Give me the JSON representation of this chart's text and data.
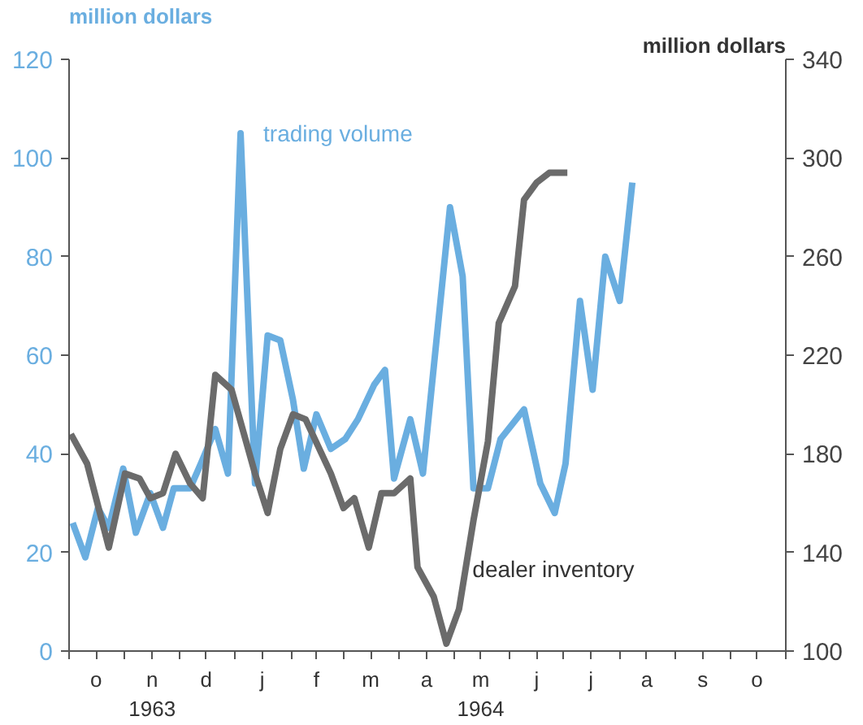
{
  "chart_data": {
    "type": "line",
    "ylabel": "million dollars",
    "y2label": "million dollars",
    "xlim": [
      "1963-10-01",
      "1964-11-01"
    ],
    "xticks": [
      {
        "value": "1963-10-01",
        "label": null
      },
      {
        "value": "1963-10-16",
        "label": "o"
      },
      {
        "value": "1963-11-01",
        "label": null
      },
      {
        "value": "1963-11-16",
        "label": "n\n1963"
      },
      {
        "value": "1963-12-01",
        "label": null
      },
      {
        "value": "1963-12-16",
        "label": "d"
      },
      {
        "value": "1964-01-01",
        "label": null
      },
      {
        "value": "1964-01-16",
        "label": "j"
      },
      {
        "value": "1964-02-01",
        "label": null
      },
      {
        "value": "1964-02-15",
        "label": "f"
      },
      {
        "value": "1964-03-01",
        "label": null
      },
      {
        "value": "1964-03-16",
        "label": "m"
      },
      {
        "value": "1964-04-01",
        "label": null
      },
      {
        "value": "1964-04-16",
        "label": "a"
      },
      {
        "value": "1964-05-01",
        "label": null
      },
      {
        "value": "1964-05-16",
        "label": "m\n1964"
      },
      {
        "value": "1964-06-01",
        "label": null
      },
      {
        "value": "1964-06-16",
        "label": "j"
      },
      {
        "value": "1964-07-01",
        "label": null
      },
      {
        "value": "1964-07-16",
        "label": "j"
      },
      {
        "value": "1964-08-01",
        "label": null
      },
      {
        "value": "1964-08-16",
        "label": "a"
      },
      {
        "value": "1964-09-01",
        "label": null
      },
      {
        "value": "1964-09-16",
        "label": "s"
      },
      {
        "value": "1964-10-01",
        "label": null
      },
      {
        "value": "1964-10-16",
        "label": "o"
      },
      {
        "value": "1964-11-01",
        "label": null
      }
    ],
    "ylim": [
      0,
      120
    ],
    "yticks": [
      0,
      20,
      40,
      60,
      80,
      100,
      120
    ],
    "y2lim": [
      100,
      340
    ],
    "y2ticks": [
      100,
      140,
      180,
      220,
      260,
      300,
      340
    ],
    "grid": false,
    "line_style": "solid",
    "series": [
      {
        "name": "trading volume",
        "color": "#6aaee0",
        "x": [
          "1963-10-03",
          "1963-10-10",
          "1963-10-17",
          "1963-10-23",
          "1963-10-31",
          "1963-11-07",
          "1963-11-15",
          "1963-11-22",
          "1963-11-28",
          "1963-12-07",
          "1963-12-13",
          "1963-12-21",
          "1963-12-28",
          "1964-01-04",
          "1964-01-12",
          "1964-01-19",
          "1964-01-26",
          "1964-02-02",
          "1964-02-08",
          "1964-02-15",
          "1964-02-23",
          "1964-03-02",
          "1964-03-09",
          "1964-03-18",
          "1964-03-24",
          "1964-03-29",
          "1964-04-07",
          "1964-04-14",
          "1964-04-29",
          "1964-05-06",
          "1964-05-12",
          "1964-05-20",
          "1964-05-27",
          "1964-06-09",
          "1964-06-18",
          "1964-06-26",
          "1964-07-02",
          "1964-07-10",
          "1964-07-17",
          "1964-07-24",
          "1964-08-01",
          "1964-08-08"
        ],
        "values": [
          26,
          19,
          29,
          25,
          37,
          24,
          32,
          25,
          33,
          33,
          38,
          45,
          36,
          105,
          34,
          64,
          63,
          51,
          37,
          48,
          41,
          43,
          47,
          54,
          57,
          35,
          47,
          36,
          90,
          76,
          33,
          33,
          43,
          49,
          34,
          28,
          38,
          71,
          53,
          80,
          71,
          95
        ]
      },
      {
        "name": "dealer inventory",
        "color": "#6b6b6b",
        "axis": "y2",
        "x": [
          "1963-10-02",
          "1963-10-11",
          "1963-10-23",
          "1963-11-01",
          "1963-11-09",
          "1963-11-15",
          "1963-11-22",
          "1963-11-29",
          "1963-12-07",
          "1963-12-14",
          "1963-12-21",
          "1963-12-30",
          "1964-01-12",
          "1964-01-19",
          "1964-01-26",
          "1964-02-02",
          "1964-02-09",
          "1964-02-23",
          "1964-03-01",
          "1964-03-07",
          "1964-03-15",
          "1964-03-22",
          "1964-03-29",
          "1964-04-07",
          "1964-04-11",
          "1964-04-20",
          "1964-04-27",
          "1964-05-04",
          "1964-05-12",
          "1964-05-20",
          "1964-05-26",
          "1964-06-04",
          "1964-06-09",
          "1964-06-16",
          "1964-06-23",
          "1964-07-03"
        ],
        "values": [
          188,
          176,
          142,
          172,
          170,
          162,
          164,
          180,
          168,
          162,
          212,
          206,
          172,
          156,
          182,
          196,
          194,
          172,
          158,
          162,
          142,
          164,
          164,
          170,
          134,
          122,
          103,
          117,
          153,
          185,
          233,
          248,
          283,
          290,
          294,
          294
        ]
      }
    ]
  }
}
